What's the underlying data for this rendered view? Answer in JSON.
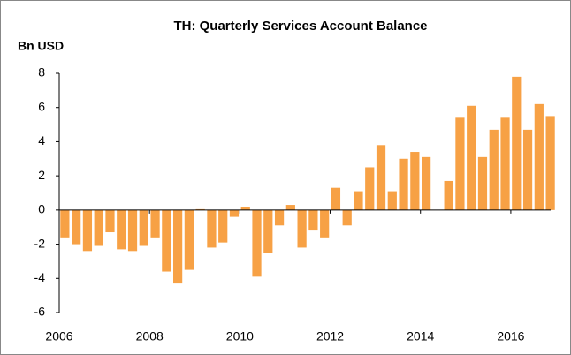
{
  "chart_data": {
    "type": "bar",
    "title": "TH: Quarterly Services Account Balance",
    "y_label": "Bn USD",
    "x": [
      2006,
      2006.25,
      2006.5,
      2006.75,
      2007,
      2007.25,
      2007.5,
      2007.75,
      2008,
      2008.25,
      2008.5,
      2008.75,
      2009,
      2009.25,
      2009.5,
      2009.75,
      2010,
      2010.25,
      2010.5,
      2010.75,
      2011,
      2011.25,
      2011.5,
      2011.75,
      2012,
      2012.25,
      2012.5,
      2012.75,
      2013,
      2013.25,
      2013.5,
      2013.75,
      2014,
      2014.25,
      2014.5,
      2014.75,
      2015,
      2015.25,
      2015.5,
      2015.75,
      2016,
      2016.25,
      2016.5,
      2016.75
    ],
    "values": [
      -1.6,
      -2.0,
      -2.4,
      -2.1,
      -1.3,
      -2.3,
      -2.4,
      -2.1,
      -1.6,
      -3.6,
      -4.3,
      -3.5,
      0.05,
      -2.2,
      -1.9,
      -0.4,
      0.2,
      -3.9,
      -2.5,
      -0.9,
      0.3,
      -2.2,
      -1.2,
      -1.6,
      1.3,
      -0.9,
      1.1,
      2.5,
      3.8,
      1.1,
      3.0,
      3.4,
      3.1,
      null,
      1.7,
      5.4,
      6.1,
      3.1,
      4.7,
      5.4,
      7.8,
      4.7,
      6.2,
      5.5
    ],
    "color": "#f7a145",
    "xlim": [
      2006,
      2017
    ],
    "xticks": [
      2006,
      2008,
      2010,
      2012,
      2014,
      2016
    ],
    "ylim": [
      -6,
      8
    ],
    "yticks": [
      -6,
      -4,
      -2,
      0,
      2,
      4,
      6,
      8
    ]
  }
}
